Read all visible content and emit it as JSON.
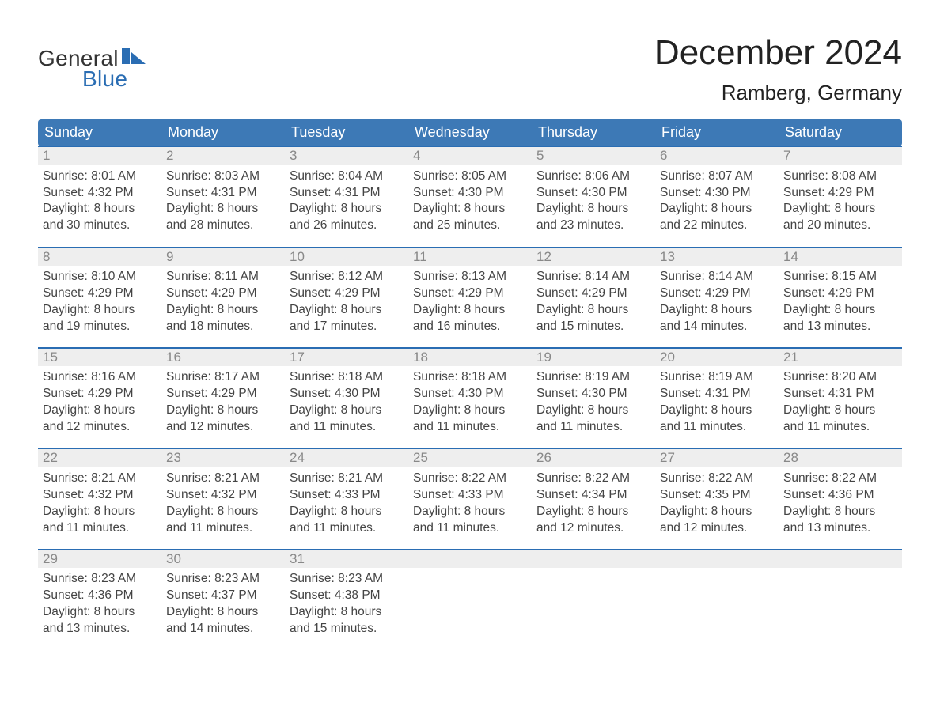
{
  "logo": {
    "text1": "General",
    "text2": "Blue"
  },
  "title": "December 2024",
  "location": "Ramberg, Germany",
  "colors": {
    "header_blue": "#3d79b6",
    "accent_blue": "#2a6db3",
    "row_gray": "#eeeeee",
    "day_number_gray": "#888888",
    "logo_blue": "#2a6db3",
    "background": "#ffffff",
    "text": "#333333"
  },
  "days_of_week": [
    "Sunday",
    "Monday",
    "Tuesday",
    "Wednesday",
    "Thursday",
    "Friday",
    "Saturday"
  ],
  "weeks": [
    [
      {
        "n": "1",
        "lines": [
          "Sunrise: 8:01 AM",
          "Sunset: 4:32 PM",
          "Daylight: 8 hours",
          "and 30 minutes."
        ]
      },
      {
        "n": "2",
        "lines": [
          "Sunrise: 8:03 AM",
          "Sunset: 4:31 PM",
          "Daylight: 8 hours",
          "and 28 minutes."
        ]
      },
      {
        "n": "3",
        "lines": [
          "Sunrise: 8:04 AM",
          "Sunset: 4:31 PM",
          "Daylight: 8 hours",
          "and 26 minutes."
        ]
      },
      {
        "n": "4",
        "lines": [
          "Sunrise: 8:05 AM",
          "Sunset: 4:30 PM",
          "Daylight: 8 hours",
          "and 25 minutes."
        ]
      },
      {
        "n": "5",
        "lines": [
          "Sunrise: 8:06 AM",
          "Sunset: 4:30 PM",
          "Daylight: 8 hours",
          "and 23 minutes."
        ]
      },
      {
        "n": "6",
        "lines": [
          "Sunrise: 8:07 AM",
          "Sunset: 4:30 PM",
          "Daylight: 8 hours",
          "and 22 minutes."
        ]
      },
      {
        "n": "7",
        "lines": [
          "Sunrise: 8:08 AM",
          "Sunset: 4:29 PM",
          "Daylight: 8 hours",
          "and 20 minutes."
        ]
      }
    ],
    [
      {
        "n": "8",
        "lines": [
          "Sunrise: 8:10 AM",
          "Sunset: 4:29 PM",
          "Daylight: 8 hours",
          "and 19 minutes."
        ]
      },
      {
        "n": "9",
        "lines": [
          "Sunrise: 8:11 AM",
          "Sunset: 4:29 PM",
          "Daylight: 8 hours",
          "and 18 minutes."
        ]
      },
      {
        "n": "10",
        "lines": [
          "Sunrise: 8:12 AM",
          "Sunset: 4:29 PM",
          "Daylight: 8 hours",
          "and 17 minutes."
        ]
      },
      {
        "n": "11",
        "lines": [
          "Sunrise: 8:13 AM",
          "Sunset: 4:29 PM",
          "Daylight: 8 hours",
          "and 16 minutes."
        ]
      },
      {
        "n": "12",
        "lines": [
          "Sunrise: 8:14 AM",
          "Sunset: 4:29 PM",
          "Daylight: 8 hours",
          "and 15 minutes."
        ]
      },
      {
        "n": "13",
        "lines": [
          "Sunrise: 8:14 AM",
          "Sunset: 4:29 PM",
          "Daylight: 8 hours",
          "and 14 minutes."
        ]
      },
      {
        "n": "14",
        "lines": [
          "Sunrise: 8:15 AM",
          "Sunset: 4:29 PM",
          "Daylight: 8 hours",
          "and 13 minutes."
        ]
      }
    ],
    [
      {
        "n": "15",
        "lines": [
          "Sunrise: 8:16 AM",
          "Sunset: 4:29 PM",
          "Daylight: 8 hours",
          "and 12 minutes."
        ]
      },
      {
        "n": "16",
        "lines": [
          "Sunrise: 8:17 AM",
          "Sunset: 4:29 PM",
          "Daylight: 8 hours",
          "and 12 minutes."
        ]
      },
      {
        "n": "17",
        "lines": [
          "Sunrise: 8:18 AM",
          "Sunset: 4:30 PM",
          "Daylight: 8 hours",
          "and 11 minutes."
        ]
      },
      {
        "n": "18",
        "lines": [
          "Sunrise: 8:18 AM",
          "Sunset: 4:30 PM",
          "Daylight: 8 hours",
          "and 11 minutes."
        ]
      },
      {
        "n": "19",
        "lines": [
          "Sunrise: 8:19 AM",
          "Sunset: 4:30 PM",
          "Daylight: 8 hours",
          "and 11 minutes."
        ]
      },
      {
        "n": "20",
        "lines": [
          "Sunrise: 8:19 AM",
          "Sunset: 4:31 PM",
          "Daylight: 8 hours",
          "and 11 minutes."
        ]
      },
      {
        "n": "21",
        "lines": [
          "Sunrise: 8:20 AM",
          "Sunset: 4:31 PM",
          "Daylight: 8 hours",
          "and 11 minutes."
        ]
      }
    ],
    [
      {
        "n": "22",
        "lines": [
          "Sunrise: 8:21 AM",
          "Sunset: 4:32 PM",
          "Daylight: 8 hours",
          "and 11 minutes."
        ]
      },
      {
        "n": "23",
        "lines": [
          "Sunrise: 8:21 AM",
          "Sunset: 4:32 PM",
          "Daylight: 8 hours",
          "and 11 minutes."
        ]
      },
      {
        "n": "24",
        "lines": [
          "Sunrise: 8:21 AM",
          "Sunset: 4:33 PM",
          "Daylight: 8 hours",
          "and 11 minutes."
        ]
      },
      {
        "n": "25",
        "lines": [
          "Sunrise: 8:22 AM",
          "Sunset: 4:33 PM",
          "Daylight: 8 hours",
          "and 11 minutes."
        ]
      },
      {
        "n": "26",
        "lines": [
          "Sunrise: 8:22 AM",
          "Sunset: 4:34 PM",
          "Daylight: 8 hours",
          "and 12 minutes."
        ]
      },
      {
        "n": "27",
        "lines": [
          "Sunrise: 8:22 AM",
          "Sunset: 4:35 PM",
          "Daylight: 8 hours",
          "and 12 minutes."
        ]
      },
      {
        "n": "28",
        "lines": [
          "Sunrise: 8:22 AM",
          "Sunset: 4:36 PM",
          "Daylight: 8 hours",
          "and 13 minutes."
        ]
      }
    ],
    [
      {
        "n": "29",
        "lines": [
          "Sunrise: 8:23 AM",
          "Sunset: 4:36 PM",
          "Daylight: 8 hours",
          "and 13 minutes."
        ]
      },
      {
        "n": "30",
        "lines": [
          "Sunrise: 8:23 AM",
          "Sunset: 4:37 PM",
          "Daylight: 8 hours",
          "and 14 minutes."
        ]
      },
      {
        "n": "31",
        "lines": [
          "Sunrise: 8:23 AM",
          "Sunset: 4:38 PM",
          "Daylight: 8 hours",
          "and 15 minutes."
        ]
      },
      {
        "n": "",
        "lines": []
      },
      {
        "n": "",
        "lines": []
      },
      {
        "n": "",
        "lines": []
      },
      {
        "n": "",
        "lines": []
      }
    ]
  ]
}
